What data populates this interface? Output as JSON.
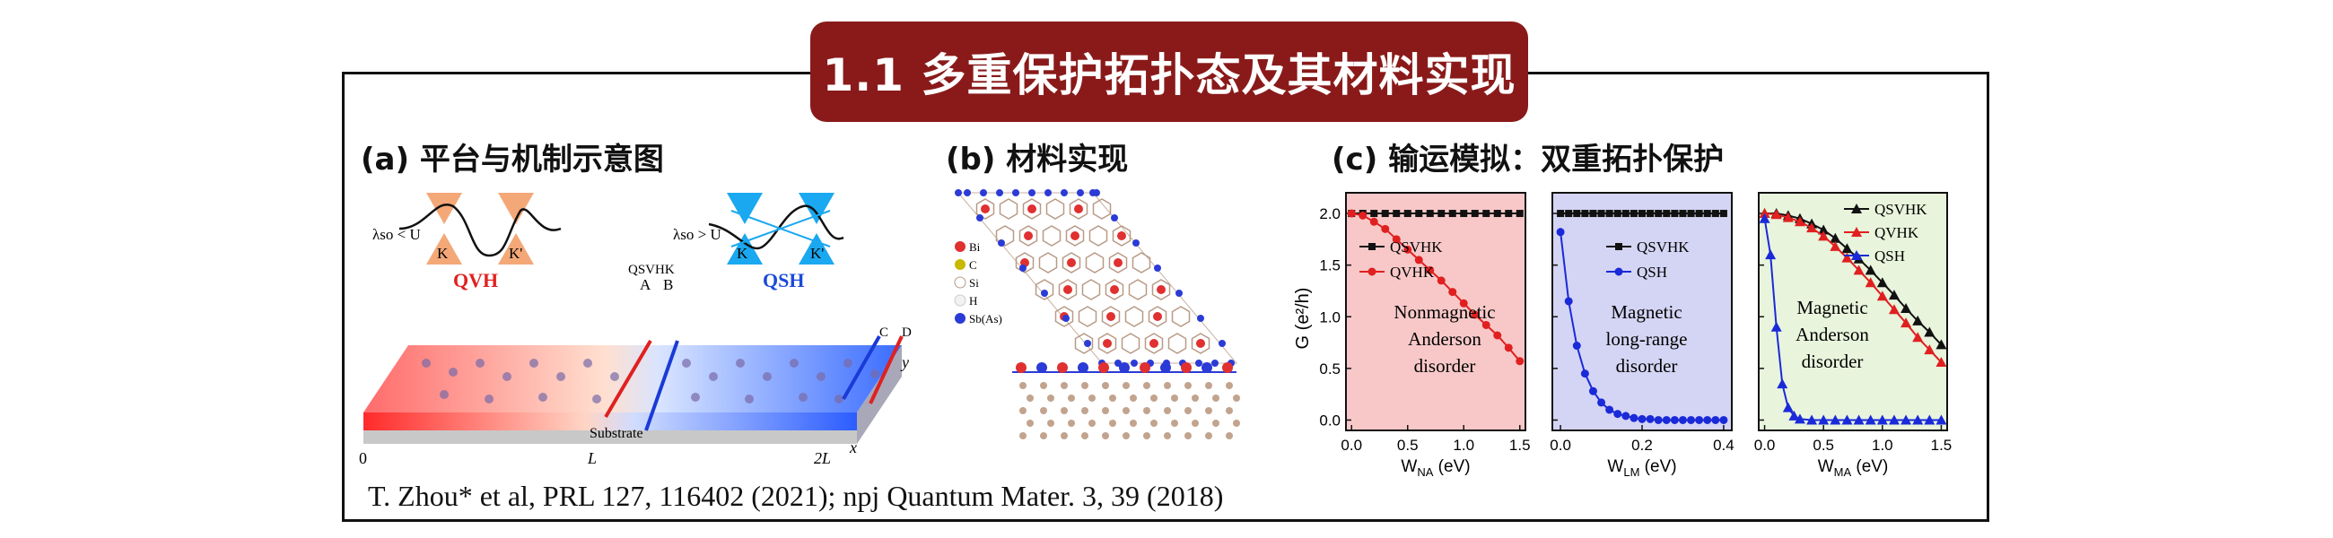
{
  "title": "1.1 多重保护拓扑态及其材料实现",
  "panels": {
    "a": {
      "label": "(a) 平台与机制示意图",
      "cond1": "λso < U",
      "cond2": "λso > U",
      "k_label": "K",
      "kp_label": "K'",
      "qvh": "QVH",
      "qsh": "QSH",
      "qsvhk": "QSVHK",
      "A": "A",
      "B": "B",
      "C": "C",
      "D": "D",
      "substrate": "Substrate",
      "ax0": "0",
      "axL": "L",
      "ax2L": "2L",
      "axx": "x",
      "axy": "y"
    },
    "b": {
      "label": "(b) 材料实现",
      "legend": [
        "Bi",
        "C",
        "Si",
        "H",
        "Sb(As)"
      ],
      "colors": {
        "Bi": "#e03030",
        "C": "#c8b800",
        "Si": "#b89a86",
        "H": "#f2f2f2",
        "SbAs": "#2b3bd6"
      }
    },
    "c": {
      "label": "(c) 输运模拟：双重拓扑保护",
      "ylabel": "G (e²/h)",
      "plots": [
        {
          "text": [
            "Nonmagnetic",
            "Anderson",
            "disorder"
          ],
          "xlabel": "W",
          "xsub": "NA",
          "xunit": " (eV)",
          "xticks": [
            "0.0",
            "0.5",
            "1.0",
            "1.5"
          ],
          "legend": [
            "QSVHK",
            "QVHK"
          ],
          "bg": "#f8c8c8"
        },
        {
          "text": [
            "Magnetic",
            "long-range",
            "disorder"
          ],
          "xlabel": "W",
          "xsub": "LM",
          "xunit": " (eV)",
          "xticks": [
            "0.0",
            "0.2",
            "0.4"
          ],
          "legend": [
            "QSVHK",
            "QSH"
          ],
          "bg": "#d4d4f4"
        },
        {
          "text": [
            "Magnetic",
            "Anderson",
            "disorder"
          ],
          "xlabel": "W",
          "xsub": "MA",
          "xunit": " (eV)",
          "xticks": [
            "0.0",
            "0.5",
            "1.0",
            "1.5"
          ],
          "legend": [
            "QSVHK",
            "QVHK",
            "QSH"
          ],
          "bg": "#e8f4dc"
        }
      ],
      "yticks": [
        "0.0",
        "0.5",
        "1.0",
        "1.5",
        "2.0"
      ]
    }
  },
  "chart_data": [
    {
      "type": "line",
      "title": "Nonmagnetic Anderson disorder",
      "xlabel": "W_NA (eV)",
      "ylabel": "G (e^2/h)",
      "ylim": [
        -0.1,
        2.2
      ],
      "xlim": [
        -0.05,
        1.55
      ],
      "series": [
        {
          "name": "QSVHK",
          "x": [
            0,
            0.1,
            0.2,
            0.3,
            0.4,
            0.5,
            0.6,
            0.7,
            0.8,
            0.9,
            1.0,
            1.1,
            1.2,
            1.3,
            1.4,
            1.5
          ],
          "values": [
            2,
            2,
            2,
            2,
            2,
            2,
            2,
            2,
            2,
            2,
            2,
            2,
            2,
            2,
            2,
            2
          ]
        },
        {
          "name": "QVHK",
          "x": [
            0,
            0.1,
            0.2,
            0.3,
            0.4,
            0.5,
            0.6,
            0.7,
            0.8,
            0.9,
            1.0,
            1.1,
            1.2,
            1.3,
            1.4,
            1.5
          ],
          "values": [
            2.0,
            1.98,
            1.92,
            1.85,
            1.75,
            1.65,
            1.55,
            1.45,
            1.35,
            1.24,
            1.13,
            1.02,
            0.92,
            0.82,
            0.7,
            0.57
          ]
        }
      ]
    },
    {
      "type": "line",
      "title": "Magnetic long-range disorder",
      "xlabel": "W_LM (eV)",
      "ylabel": "G (e^2/h)",
      "ylim": [
        -0.1,
        2.2
      ],
      "xlim": [
        -0.02,
        0.42
      ],
      "series": [
        {
          "name": "QSVHK",
          "x": [
            0,
            0.02,
            0.04,
            0.06,
            0.08,
            0.1,
            0.12,
            0.14,
            0.16,
            0.18,
            0.2,
            0.22,
            0.24,
            0.26,
            0.28,
            0.3,
            0.32,
            0.34,
            0.36,
            0.38,
            0.4
          ],
          "values": [
            2,
            2,
            2,
            2,
            2,
            2,
            2,
            2,
            2,
            2,
            2,
            2,
            2,
            2,
            2,
            2,
            2,
            2,
            2,
            2,
            2
          ]
        },
        {
          "name": "QSH",
          "x": [
            0,
            0.02,
            0.04,
            0.06,
            0.08,
            0.1,
            0.12,
            0.14,
            0.16,
            0.18,
            0.2,
            0.22,
            0.24,
            0.26,
            0.28,
            0.3,
            0.32,
            0.34,
            0.36,
            0.38,
            0.4
          ],
          "values": [
            1.82,
            1.15,
            0.72,
            0.45,
            0.28,
            0.17,
            0.1,
            0.06,
            0.04,
            0.02,
            0.01,
            0.01,
            0.0,
            0.0,
            0.0,
            0.0,
            0.0,
            0.0,
            0.0,
            0.0,
            0.0
          ]
        }
      ]
    },
    {
      "type": "line",
      "title": "Magnetic Anderson disorder",
      "xlabel": "W_MA (eV)",
      "ylabel": "G (e^2/h)",
      "ylim": [
        -0.1,
        2.2
      ],
      "xlim": [
        -0.05,
        1.55
      ],
      "series": [
        {
          "name": "QSVHK",
          "x": [
            0,
            0.1,
            0.2,
            0.3,
            0.4,
            0.5,
            0.6,
            0.7,
            0.8,
            0.9,
            1.0,
            1.1,
            1.2,
            1.3,
            1.4,
            1.5
          ],
          "values": [
            2.0,
            2.0,
            1.98,
            1.95,
            1.9,
            1.84,
            1.76,
            1.66,
            1.56,
            1.45,
            1.33,
            1.21,
            1.08,
            0.96,
            0.85,
            0.73
          ]
        },
        {
          "name": "QVHK",
          "x": [
            0,
            0.1,
            0.2,
            0.3,
            0.4,
            0.5,
            0.6,
            0.7,
            0.8,
            0.9,
            1.0,
            1.1,
            1.2,
            1.3,
            1.4,
            1.5
          ],
          "values": [
            2.0,
            1.99,
            1.96,
            1.92,
            1.86,
            1.78,
            1.68,
            1.57,
            1.45,
            1.33,
            1.2,
            1.07,
            0.94,
            0.8,
            0.68,
            0.56
          ]
        },
        {
          "name": "QSH",
          "x": [
            0,
            0.05,
            0.1,
            0.15,
            0.2,
            0.25,
            0.3,
            0.4,
            0.5,
            0.6,
            0.7,
            0.8,
            0.9,
            1.0,
            1.1,
            1.2,
            1.3,
            1.4,
            1.5
          ],
          "values": [
            1.95,
            1.6,
            0.9,
            0.35,
            0.12,
            0.04,
            0.01,
            0,
            0,
            0,
            0,
            0,
            0,
            0,
            0,
            0,
            0,
            0,
            0
          ]
        }
      ]
    }
  ],
  "citation": "T. Zhou* et al, PRL 127, 116402 (2021); npj Quantum Mater. 3, 39 (2018)"
}
